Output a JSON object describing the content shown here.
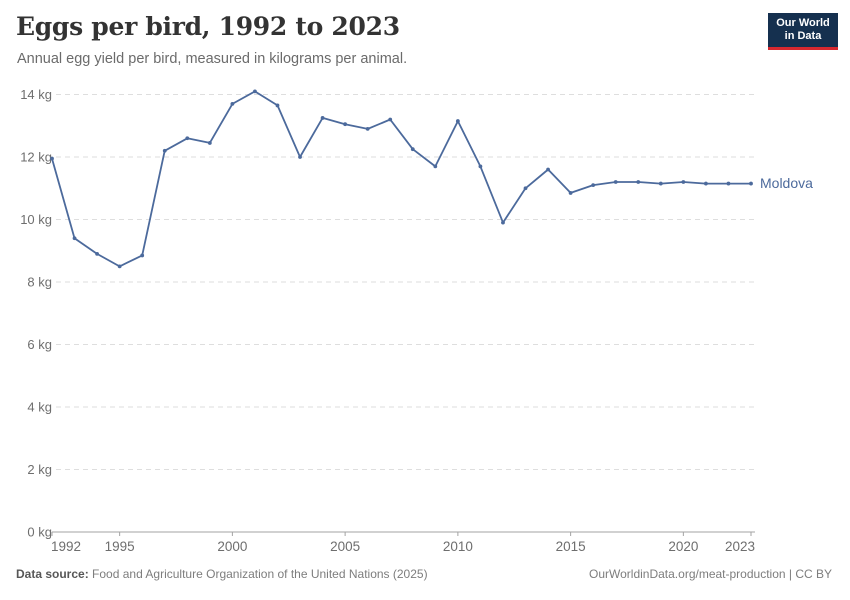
{
  "header": {
    "title": "Eggs per bird, 1992 to 2023",
    "subtitle": "Annual egg yield per bird, measured in kilograms per animal.",
    "logo": {
      "line1": "Our World",
      "line2": "in Data"
    }
  },
  "footer": {
    "source_label": "Data source:",
    "source_text": " Food and Agriculture Organization of the United Nations (2025)",
    "credit": "OurWorldinData.org/meat-production | CC BY"
  },
  "colors": {
    "line": "#4C6A9C",
    "logo_bg": "#15304F",
    "logo_underline": "#D7282F",
    "gridline": "#dedede",
    "axis": "#a3a3a3",
    "tick_label": "#6e6e6e"
  },
  "chart_data": {
    "type": "line",
    "title": "Eggs per bird, 1992 to 2023",
    "subtitle": "Annual egg yield per bird, measured in kilograms per animal.",
    "unit": "kg",
    "xlim": [
      1992,
      2023
    ],
    "ylim": [
      0,
      14
    ],
    "grid": "horizontal-dashed",
    "legend": "end-of-line-label",
    "yticks": [
      0,
      2,
      4,
      6,
      8,
      10,
      12,
      14
    ],
    "ytick_suffix": " kg",
    "xticks": [
      1992,
      1995,
      2000,
      2005,
      2010,
      2015,
      2020,
      2023
    ],
    "x": [
      1992,
      1993,
      1994,
      1995,
      1996,
      1997,
      1998,
      1999,
      2000,
      2001,
      2002,
      2003,
      2004,
      2005,
      2006,
      2007,
      2008,
      2009,
      2010,
      2011,
      2012,
      2013,
      2014,
      2015,
      2016,
      2017,
      2018,
      2019,
      2020,
      2021,
      2022,
      2023
    ],
    "series": [
      {
        "name": "Moldova",
        "color": "#4C6A9C",
        "values": [
          11.95,
          9.4,
          8.9,
          8.5,
          8.85,
          12.2,
          12.6,
          12.45,
          13.7,
          14.1,
          13.65,
          12.0,
          13.25,
          13.05,
          12.9,
          13.2,
          12.25,
          11.7,
          13.15,
          11.7,
          9.9,
          11.0,
          11.6,
          10.85,
          11.1,
          11.2,
          11.2,
          11.15,
          11.2,
          11.15,
          11.15,
          11.15
        ]
      }
    ]
  }
}
